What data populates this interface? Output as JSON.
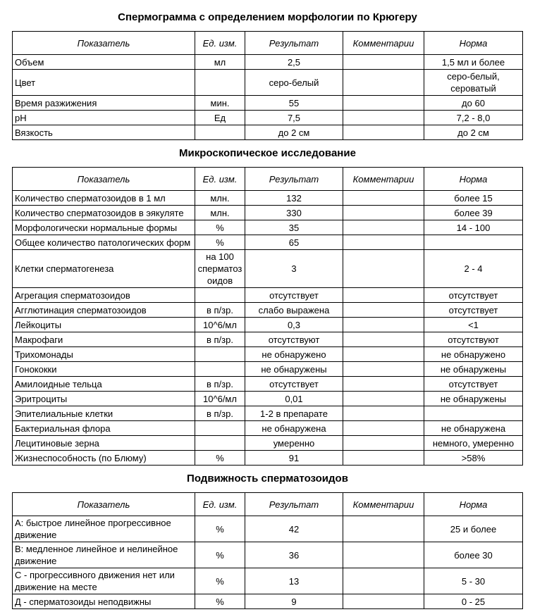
{
  "sections": [
    {
      "title": "Спермограмма с определением морфологии по Крюгеру",
      "headers": [
        "Показатель",
        "Ед. изм.",
        "Результат",
        "Комментарии",
        "Норма"
      ],
      "rows": [
        [
          "Объем",
          "мл",
          "2,5",
          "",
          "1,5 мл и более"
        ],
        [
          "Цвет",
          "",
          "серо-белый",
          "",
          "серо-белый, сероватый"
        ],
        [
          "Время разжижения",
          "мин.",
          "55",
          "",
          "до 60"
        ],
        [
          "pH",
          "Ед",
          "7,5",
          "",
          "7,2 - 8,0"
        ],
        [
          "Вязкость",
          "",
          "до 2 см",
          "",
          "до 2 см"
        ]
      ]
    },
    {
      "title": "Микроскопическое исследование",
      "headers": [
        "Показатель",
        "Ед. изм.",
        "Результат",
        "Комментарии",
        "Норма"
      ],
      "rows": [
        [
          "Количество сперматозоидов в 1 мл",
          "млн.",
          "132",
          "",
          "более 15"
        ],
        [
          "Количество сперматозоидов в эякуляте",
          "млн.",
          "330",
          "",
          "более 39"
        ],
        [
          "Морфологически нормальные формы",
          "%",
          "35",
          "",
          "14 - 100"
        ],
        [
          "Общее количество патологических форм",
          "%",
          "65",
          "",
          ""
        ],
        [
          "Клетки сперматогенеза",
          "на 100 сперматозоидов",
          "3",
          "",
          "2 - 4"
        ],
        [
          "Агрегация сперматозоидов",
          "",
          "отсутствует",
          "",
          "отсутствует"
        ],
        [
          "Агглютинация сперматозоидов",
          "в п/зр.",
          "слабо выражена",
          "",
          "отсутствует"
        ],
        [
          "Лейкоциты",
          "10^6/мл",
          "0,3",
          "",
          "<1"
        ],
        [
          "Макрофаги",
          "в п/зр.",
          "отсутствуют",
          "",
          "отсутствуют"
        ],
        [
          "Трихомонады",
          "",
          "не обнаружено",
          "",
          "не обнаружено"
        ],
        [
          "Гонококки",
          "",
          "не обнаружены",
          "",
          "не обнаружены"
        ],
        [
          "Амилоидные тельца",
          "в п/зр.",
          "отсутствует",
          "",
          "отсутствует"
        ],
        [
          "Эритроциты",
          "10^6/мл",
          "0,01",
          "",
          "не обнаружены"
        ],
        [
          "Эпителиальные клетки",
          "в п/зр.",
          "1-2 в препарате",
          "",
          ""
        ],
        [
          "Бактериальная флора",
          "",
          "не обнаружена",
          "",
          "не обнаружена"
        ],
        [
          "Лецитиновые зерна",
          "",
          "умеренно",
          "",
          "немного, умеренно"
        ],
        [
          "Жизнеспособность (по Блюму)",
          "%",
          "91",
          "",
          ">58%"
        ]
      ]
    },
    {
      "title": "Подвижность сперматозоидов",
      "headers": [
        "Показатель",
        "Ед. изм.",
        "Результат",
        "Комментарии",
        "Норма"
      ],
      "rows": [
        [
          "А: быстрое линейное прогрессивное движение",
          "%",
          "42",
          "",
          "25 и более"
        ],
        [
          "В: медленное линейное и нелинейное движение",
          "%",
          "36",
          "",
          "более 30"
        ],
        [
          "С - прогрессивного движения нет или движение на месте",
          "%",
          "13",
          "",
          "5 - 30"
        ],
        [
          "Д - сперматозоиды неподвижны",
          "%",
          "9",
          "",
          "0 - 25"
        ]
      ]
    }
  ]
}
